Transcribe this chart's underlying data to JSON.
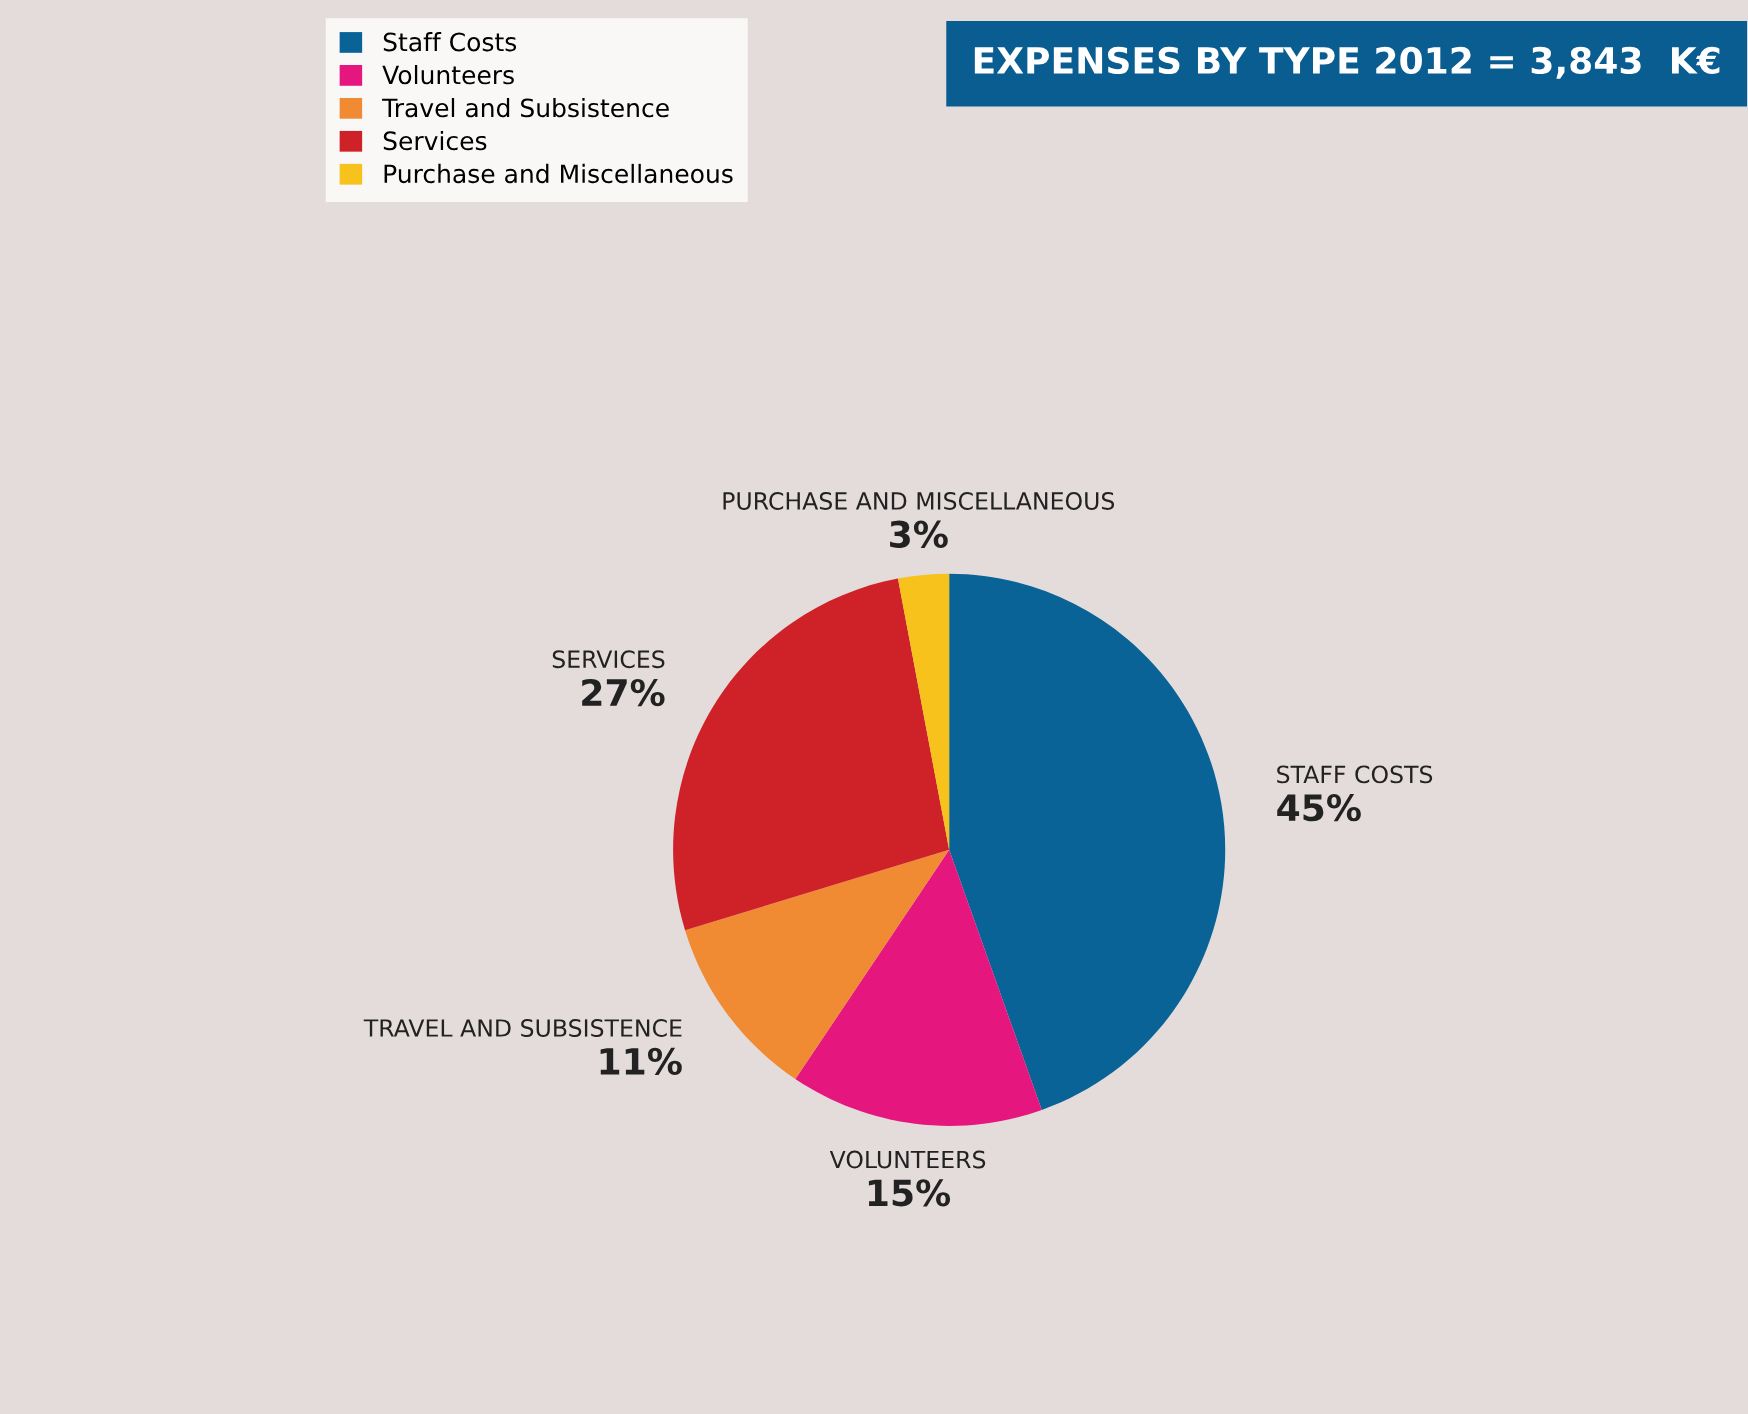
{
  "chart_data": {
    "type": "pie",
    "title": "EXPENSES BY TYPE 2012 = 3,843  K€",
    "categories": [
      "Staff Costs",
      "Volunteers",
      "Travel and Subsistence",
      "Services",
      "Purchase and Miscellaneous"
    ],
    "values": [
      45,
      15,
      11,
      27,
      3
    ],
    "colors": [
      "#0a6396",
      "#e5177e",
      "#f08a33",
      "#cf2228",
      "#f7c21b"
    ],
    "value_labels": [
      "45%",
      "15%",
      "11%",
      "27%",
      "3%"
    ],
    "annotations": [
      "STAFF COSTS",
      "VOLUNTEERS",
      "TRAVEL AND SUBSISTENCE",
      "SERVICES",
      "PURCHASE AND MISCELLANEOUS"
    ],
    "legend": "top left"
  }
}
